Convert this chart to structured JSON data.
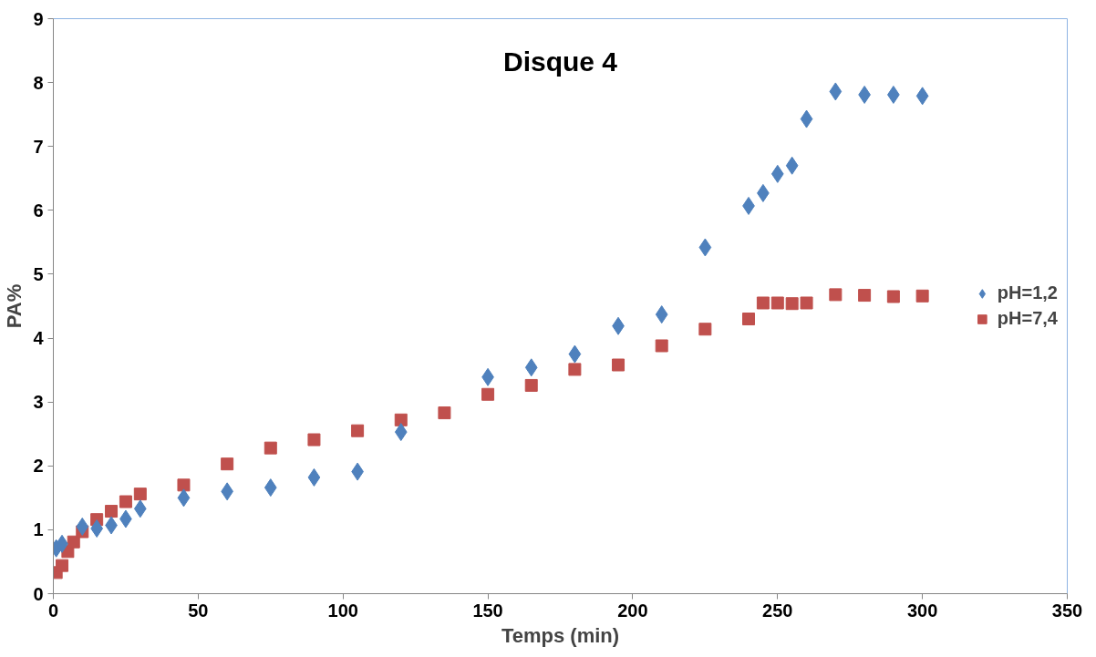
{
  "chart_data": {
    "type": "scatter",
    "title": "Disque 4",
    "xlabel": "Temps (min)",
    "ylabel": "PA%",
    "xlim": [
      0,
      350
    ],
    "xticks": [
      0,
      50,
      100,
      150,
      200,
      250,
      300,
      350
    ],
    "ylim": [
      0,
      9
    ],
    "yticks": [
      0,
      1,
      2,
      3,
      4,
      5,
      6,
      7,
      8,
      9
    ],
    "grid": false,
    "legend": "right",
    "series": [
      {
        "name": "pH=1,2",
        "color": "#4f81bd",
        "marker": "diamond",
        "x": [
          1,
          3,
          10,
          15,
          20,
          25,
          30,
          45,
          60,
          75,
          90,
          105,
          120,
          135,
          150,
          165,
          180,
          195,
          210,
          225,
          240,
          245,
          250,
          255,
          260,
          270,
          280,
          290,
          300
        ],
        "values": [
          0.71,
          0.78,
          1.05,
          1.02,
          1.07,
          1.17,
          1.33,
          1.5,
          1.6,
          1.66,
          1.82,
          1.91,
          2.53,
          null,
          3.39,
          3.54,
          3.75,
          4.19,
          4.37,
          5.42,
          6.07,
          6.27,
          6.57,
          6.7,
          7.43,
          7.86,
          7.81,
          7.81,
          7.79
        ]
      },
      {
        "name": "pH=7,4",
        "color": "#c0504d",
        "marker": "square",
        "x": [
          1,
          3,
          5,
          7,
          10,
          15,
          20,
          25,
          30,
          45,
          60,
          75,
          90,
          105,
          120,
          135,
          150,
          165,
          180,
          195,
          210,
          225,
          240,
          245,
          250,
          255,
          260,
          270,
          280,
          290,
          300
        ],
        "values": [
          0.33,
          0.44,
          0.66,
          0.81,
          0.97,
          1.16,
          1.29,
          1.44,
          1.56,
          1.7,
          2.03,
          2.28,
          2.41,
          2.55,
          2.72,
          2.83,
          3.12,
          3.26,
          3.51,
          3.58,
          3.88,
          4.14,
          4.3,
          4.55,
          4.55,
          4.54,
          4.55,
          4.68,
          4.67,
          4.65,
          4.66
        ]
      }
    ]
  }
}
